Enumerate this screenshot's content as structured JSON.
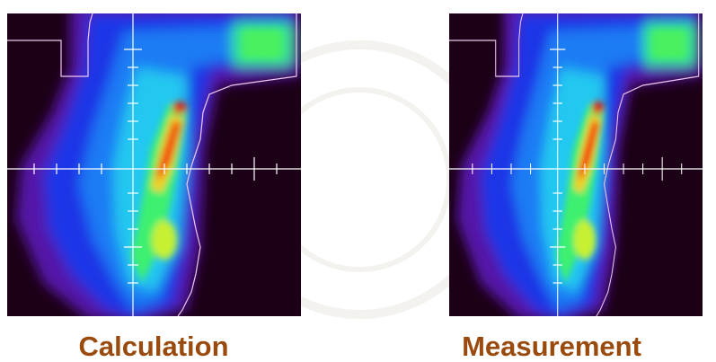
{
  "panels": [
    {
      "label": "Calculation"
    },
    {
      "label": "Measurement"
    }
  ]
}
